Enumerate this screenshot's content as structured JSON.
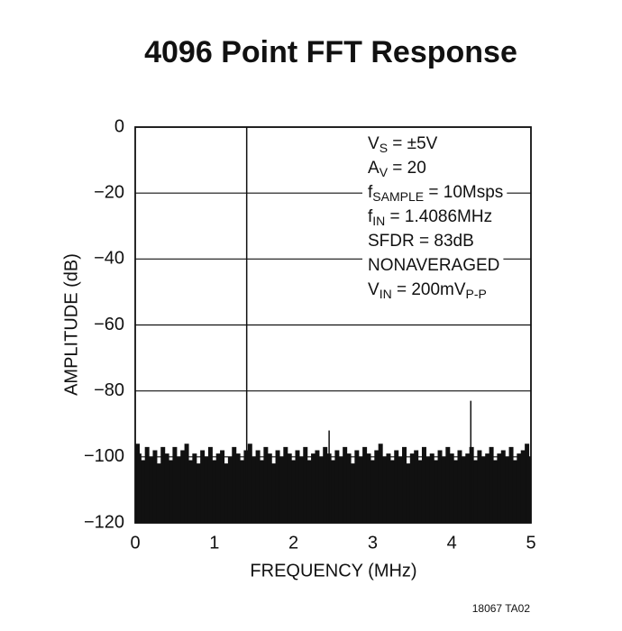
{
  "chart_data": {
    "type": "spectrum",
    "title": "4096 Point FFT Response",
    "x_label": "FREQUENCY (MHz)",
    "y_label": "AMPLITUDE (dB)",
    "footnote": "18067 TA02",
    "xlim": [
      0,
      5
    ],
    "xticks": [
      0,
      1,
      2,
      3,
      4,
      5
    ],
    "ylim": [
      -120,
      0
    ],
    "yticks": [
      {
        "value": 0,
        "label": "0"
      },
      {
        "value": -20,
        "label": "−20"
      },
      {
        "value": -40,
        "label": "−40"
      },
      {
        "value": -60,
        "label": "−60"
      },
      {
        "value": -80,
        "label": "−80"
      },
      {
        "value": -100,
        "label": "−100"
      },
      {
        "value": -120,
        "label": "−120"
      }
    ],
    "grid": true,
    "color": "#111111",
    "x": [
      0,
      0.05,
      0.1,
      0.15,
      0.2,
      0.25,
      0.3,
      0.35,
      0.4,
      0.45,
      0.5,
      0.55,
      0.6,
      0.65,
      0.7,
      0.75,
      0.8,
      0.85,
      0.9,
      0.95,
      1,
      1.05,
      1.1,
      1.15,
      1.2,
      1.25,
      1.3,
      1.35,
      1.4,
      1.45,
      1.5,
      1.55,
      1.6,
      1.65,
      1.7,
      1.75,
      1.8,
      1.85,
      1.9,
      1.95,
      2,
      2.05,
      2.1,
      2.15,
      2.2,
      2.25,
      2.3,
      2.35,
      2.4,
      2.45,
      2.5,
      2.55,
      2.6,
      2.65,
      2.7,
      2.75,
      2.8,
      2.85,
      2.9,
      2.95,
      3,
      3.05,
      3.1,
      3.15,
      3.2,
      3.25,
      3.3,
      3.35,
      3.4,
      3.45,
      3.5,
      3.55,
      3.6,
      3.65,
      3.7,
      3.75,
      3.8,
      3.85,
      3.9,
      3.95,
      4,
      4.05,
      4.1,
      4.15,
      4.2,
      4.25,
      4.3,
      4.35,
      4.4,
      4.45,
      4.5,
      4.55,
      4.6,
      4.65,
      4.7,
      4.75,
      4.8,
      4.85,
      4.9,
      4.95,
      5
    ],
    "values": [
      -96,
      -99,
      -101,
      -97,
      -100,
      -98,
      -102,
      -97,
      -99,
      -101,
      -97,
      -100,
      -98,
      -96,
      -101,
      -99,
      -102,
      -98,
      -100,
      -97,
      -101,
      -99,
      -98,
      -102,
      -100,
      -97,
      -99,
      -101,
      -98,
      -96,
      -100,
      -98,
      -101,
      -97,
      -99,
      -102,
      -98,
      -100,
      -97,
      -99,
      -101,
      -98,
      -100,
      -97,
      -101,
      -99,
      -98,
      -100,
      -97,
      -99,
      -101,
      -98,
      -100,
      -97,
      -99,
      -102,
      -98,
      -100,
      -97,
      -99,
      -101,
      -98,
      -96,
      -100,
      -99,
      -101,
      -98,
      -100,
      -97,
      -102,
      -99,
      -98,
      -101,
      -97,
      -100,
      -99,
      -101,
      -98,
      -100,
      -97,
      -99,
      -101,
      -98,
      -100,
      -99,
      -97,
      -101,
      -98,
      -100,
      -99,
      -97,
      -101,
      -99,
      -98,
      -100,
      -97,
      -101,
      -99,
      -98,
      -96,
      -100
    ],
    "spurs": {
      "x": [
        1.4086,
        2.45,
        4.24
      ],
      "values": [
        0,
        -92,
        -83
      ]
    },
    "annotation": [
      [
        {
          "t": "V"
        },
        {
          "t": "S",
          "sub": true
        },
        {
          "t": " = ±5V"
        }
      ],
      [
        {
          "t": "A"
        },
        {
          "t": "V",
          "sub": true
        },
        {
          "t": " = 20"
        }
      ],
      [
        {
          "t": "f"
        },
        {
          "t": "SAMPLE",
          "sub": true
        },
        {
          "t": " = 10Msps"
        }
      ],
      [
        {
          "t": "f"
        },
        {
          "t": "IN",
          "sub": true
        },
        {
          "t": " = 1.4086MHz"
        }
      ],
      [
        {
          "t": "SFDR = 83dB"
        }
      ],
      [
        {
          "t": "NONAVERAGED"
        }
      ],
      [
        {
          "t": "V"
        },
        {
          "t": "IN",
          "sub": true
        },
        {
          "t": " = 200mV"
        },
        {
          "t": "P-P",
          "sub": true
        }
      ]
    ]
  }
}
